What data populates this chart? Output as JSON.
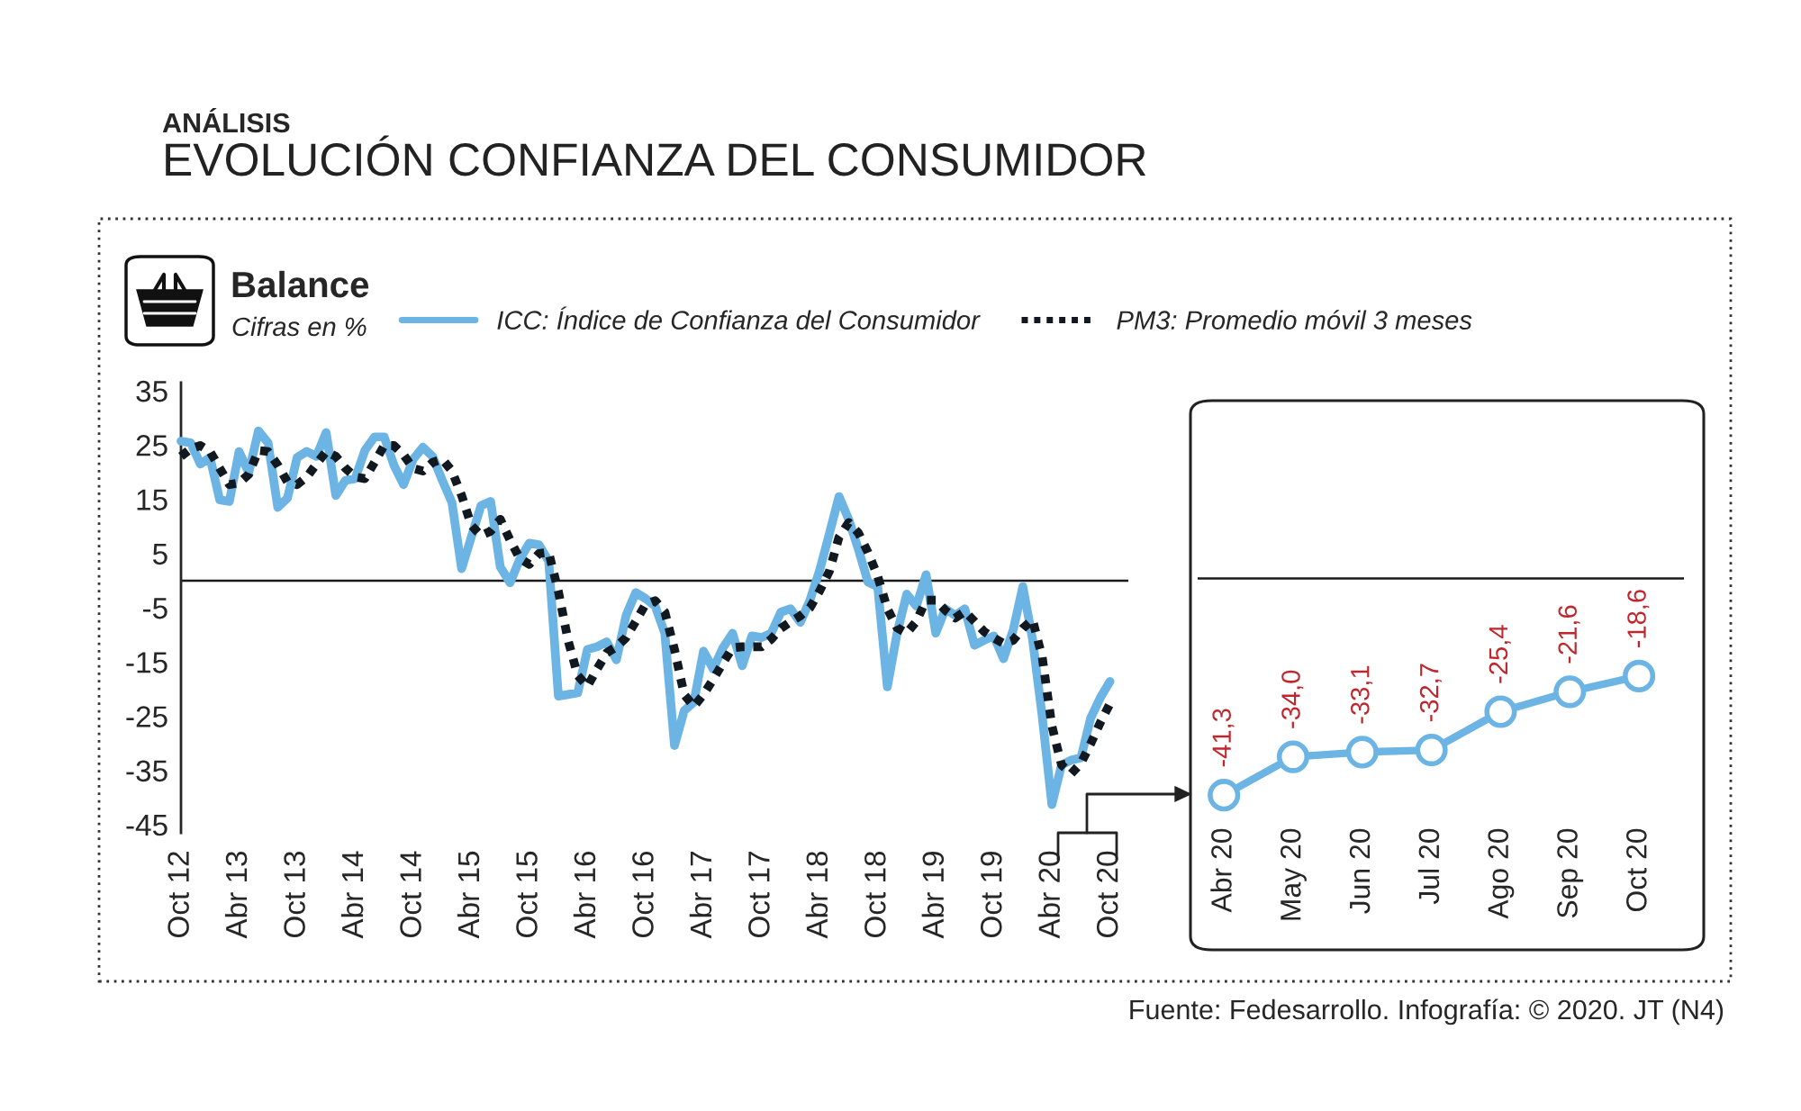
{
  "chart_data": [
    {
      "type": "line",
      "title": "EVOLUCIÓN CONFIANZA DEL CONSUMIDOR",
      "subtitle": "Balance",
      "ylabel": "Cifras en %",
      "annotations": [
        "ANÁLISIS",
        "Fuente: Fedesarrollo. Infografía: © 2020. JT (N4)"
      ],
      "categories": [
        "Oct 12",
        null,
        null,
        null,
        null,
        null,
        "Abr 13",
        null,
        null,
        null,
        null,
        null,
        "Oct 13",
        null,
        null,
        null,
        null,
        null,
        "Abr 14",
        null,
        null,
        null,
        null,
        null,
        "Oct 14",
        null,
        null,
        null,
        null,
        null,
        "Abr 15",
        null,
        null,
        null,
        null,
        null,
        "Oct 15",
        null,
        null,
        null,
        null,
        null,
        "Abr 16",
        null,
        null,
        null,
        null,
        null,
        "Oct 16",
        null,
        null,
        null,
        null,
        null,
        "Abr 17",
        null,
        null,
        null,
        null,
        null,
        "Oct 17",
        null,
        null,
        null,
        null,
        null,
        "Abr 18",
        null,
        null,
        null,
        null,
        null,
        "Oct 18",
        null,
        null,
        null,
        null,
        null,
        "Abr 19",
        null,
        null,
        null,
        null,
        null,
        "Oct 19",
        null,
        null,
        null,
        null,
        null,
        "Abr 20",
        null,
        null,
        null,
        null,
        null,
        "Oct 20"
      ],
      "series": [
        {
          "name": "ICC: Índice de Confianza del Consumidor",
          "color": "#6cb4e4",
          "line_style": "solid",
          "values": [
            25.7,
            25.4,
            21.5,
            22.7,
            14.9,
            14.6,
            23.8,
            19.9,
            27.6,
            25.4,
            13.5,
            15.2,
            22.7,
            23.8,
            22.9,
            27.3,
            15.7,
            18.5,
            18.8,
            24.0,
            26.5,
            26.5,
            21.3,
            17.7,
            22.4,
            24.6,
            22.9,
            18.5,
            14.4,
            2.2,
            8.0,
            13.8,
            14.6,
            2.5,
            -0.4,
            3.9,
            6.9,
            6.6,
            3.6,
            -21.3,
            -21.0,
            -20.7,
            -12.7,
            -12.2,
            -11.3,
            -14.6,
            -6.4,
            -2.2,
            -3.3,
            -4.7,
            -9.7,
            -30.4,
            -24.0,
            -22.4,
            -13.0,
            -16.3,
            -12.4,
            -9.7,
            -15.7,
            -10.2,
            -10.5,
            -9.7,
            -5.8,
            -5.2,
            -7.7,
            -3.6,
            1.9,
            8.6,
            15.5,
            11.3,
            5.8,
            -0.3,
            -1.1,
            -19.6,
            -9.7,
            -2.5,
            -4.7,
            1.1,
            -9.7,
            -5.2,
            -6.4,
            -5.2,
            -11.9,
            -11.0,
            -10.2,
            -14.4,
            -9.1,
            -1.1,
            -10.8,
            -25.0,
            -41.3,
            -34.0,
            -33.1,
            -32.7,
            -25.4,
            -21.6,
            -18.6
          ]
        },
        {
          "name": "PM3: Promedio móvil 3 meses",
          "color": "#111820",
          "line_style": "dotted",
          "values": [
            22.9,
            24.3,
            24.9,
            23.8,
            20.7,
            17.7,
            18.0,
            19.6,
            24.0,
            23.8,
            21.3,
            18.2,
            17.7,
            19.1,
            21.5,
            23.8,
            22.9,
            20.7,
            19.1,
            18.8,
            21.8,
            24.9,
            24.9,
            23.2,
            20.7,
            20.2,
            21.8,
            22.4,
            20.2,
            15.7,
            10.2,
            8.3,
            9.1,
            11.3,
            7.5,
            4.1,
            3.0,
            5.0,
            5.2,
            -2.0,
            -11.0,
            -17.5,
            -19.5,
            -16.3,
            -13.3,
            -12.2,
            -10.5,
            -7.5,
            -4.4,
            -3.7,
            -5.8,
            -12.7,
            -21.0,
            -23.2,
            -21.0,
            -18.2,
            -15.2,
            -12.4,
            -12.2,
            -12.2,
            -12.2,
            -10.8,
            -8.8,
            -7.6,
            -6.5,
            -5.0,
            -1.9,
            1.7,
            8.0,
            10.7,
            8.8,
            5.2,
            0.8,
            -5.2,
            -8.7,
            -9.7,
            -7.5,
            -3.6,
            -3.6,
            -5.5,
            -6.9,
            -5.7,
            -7.5,
            -9.4,
            -10.6,
            -11.6,
            -11.0,
            -8.8,
            -7.2,
            -14.1,
            -26.8,
            -34.0,
            -35.6,
            -33.7,
            -30.1,
            -26.2,
            -22.7
          ]
        }
      ],
      "ylim": [
        -46.5,
        36.5
      ],
      "yticks": [
        -45,
        -35,
        -25,
        -15,
        -5,
        5,
        15,
        25,
        35
      ],
      "ref_lines": [
        {
          "axis": "y",
          "value": 0,
          "color": "#1a1a1a"
        }
      ],
      "grid": false,
      "legend": "top"
    },
    {
      "type": "line",
      "categories": [
        "Abr 20",
        "May 20",
        "Jun 20",
        "Jul 20",
        "Ago 20",
        "Sep 20",
        "Oct 20"
      ],
      "series": [
        {
          "color": "#6cb4e4",
          "values": [
            -41.3,
            -34.0,
            -33.1,
            -32.7,
            -25.4,
            -21.6,
            -18.6
          ],
          "value_labels": [
            "-41,3",
            "-34,0",
            "-33,1",
            "-32,7",
            "-25,4",
            "-21,6",
            "-18,6"
          ]
        }
      ],
      "tick_labels": "x",
      "marker": "circle",
      "ref_lines": [
        {
          "axis": "y",
          "value": 0,
          "color": "#1a1a1a"
        }
      ],
      "grid": false
    }
  ]
}
